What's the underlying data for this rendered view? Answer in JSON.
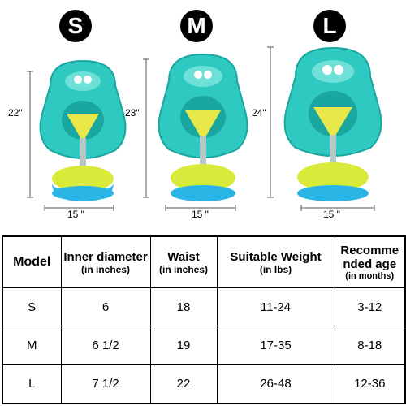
{
  "sizes": [
    {
      "letter": "S",
      "height": "22\"",
      "width": "15 \""
    },
    {
      "letter": "M",
      "height": "23\"",
      "width": "15 \""
    },
    {
      "letter": "L",
      "height": "24\"",
      "width": "15 \""
    }
  ],
  "table": {
    "headers": {
      "model": "Model",
      "inner_diameter": "Inner diameter",
      "inner_diameter_unit": "(in inches)",
      "waist": "Waist",
      "waist_unit": "(in inches)",
      "weight": "Suitable Weight",
      "weight_unit": "(in lbs)",
      "age_line1": "Recomme",
      "age_line2": "nded age",
      "age_unit": "(in months)"
    },
    "rows": [
      {
        "model": "S",
        "inner_diameter": "6",
        "waist": "18",
        "weight": "11-24",
        "age": "3-12"
      },
      {
        "model": "M",
        "inner_diameter": "6 1/2",
        "waist": "19",
        "weight": "17-35",
        "age": "8-18"
      },
      {
        "model": "L",
        "inner_diameter": "7 1/2",
        "waist": "22",
        "weight": "26-48",
        "age": "12-36"
      }
    ]
  },
  "colors": {
    "float_teal": "#2ec9c0",
    "float_dark": "#1aa79f",
    "seat_yellow": "#e8e84a",
    "base_blue": "#29b6e6"
  }
}
